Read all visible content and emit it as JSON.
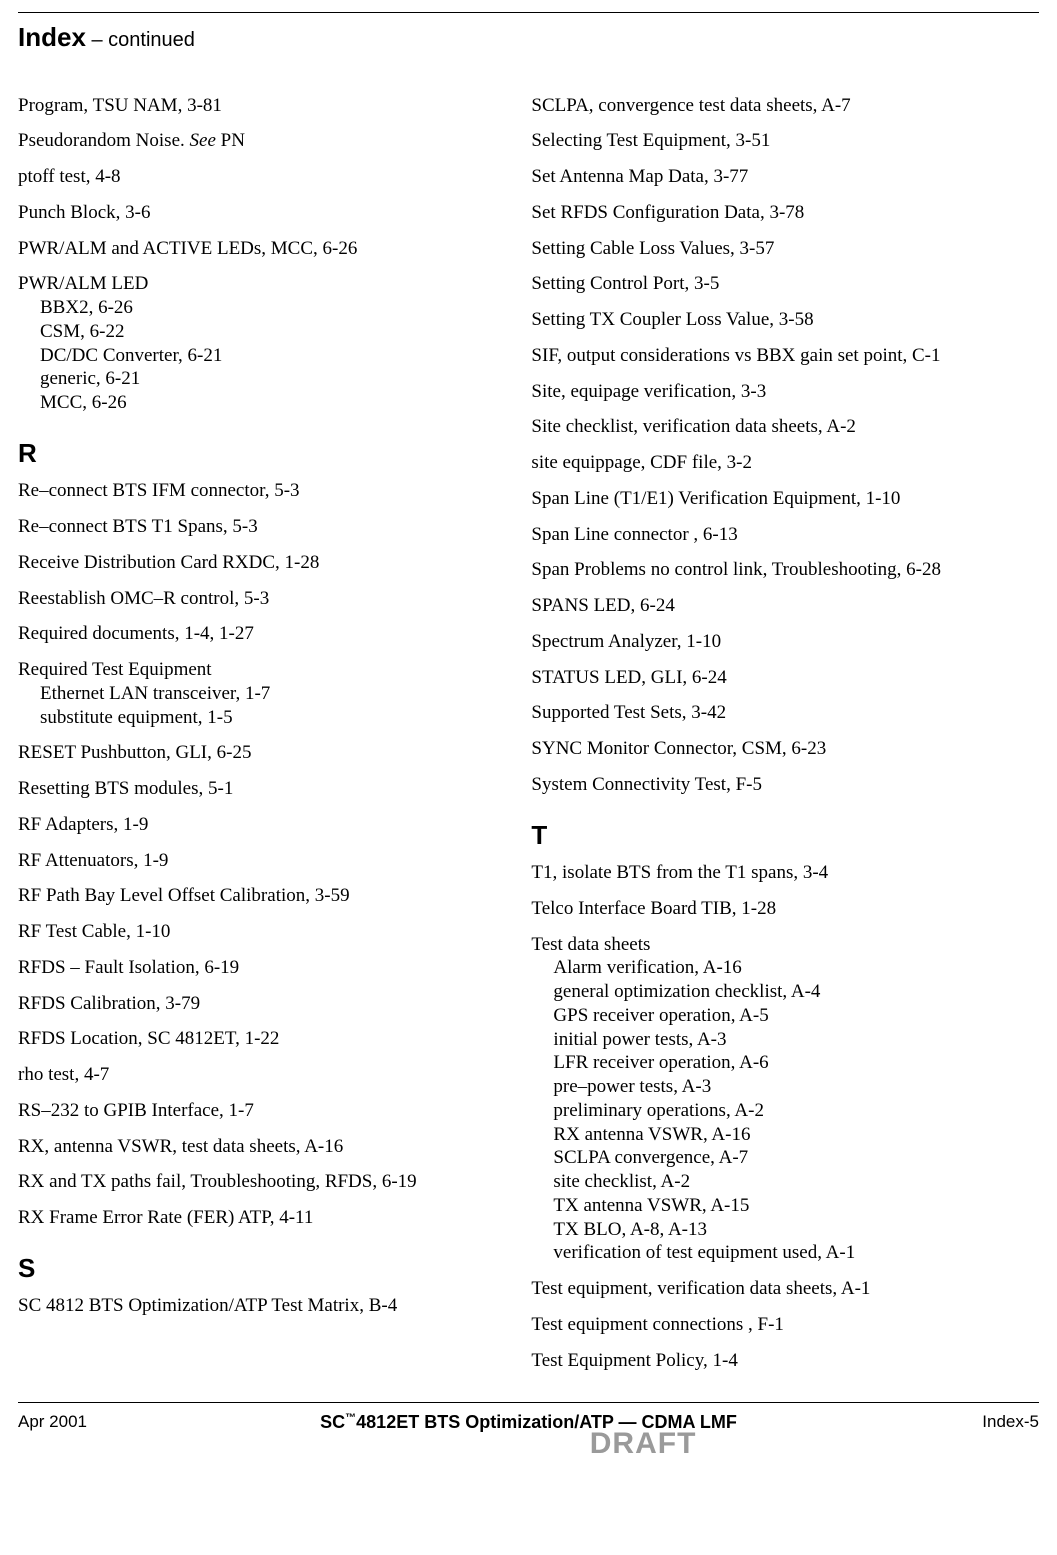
{
  "header": {
    "title": "Index",
    "subtitle": " – continued"
  },
  "left": {
    "entries_top": [
      {
        "main": "Program, TSU NAM, 3-81"
      },
      {
        "main_html": "Pseudorandom Noise. <span class=\"ital\">See</span> PN"
      },
      {
        "main": "ptoff test, 4-8"
      },
      {
        "main": "Punch Block, 3-6"
      },
      {
        "main": "PWR/ALM and ACTIVE LEDs, MCC, 6-26"
      },
      {
        "main": "PWR/ALM LED",
        "subs": [
          "BBX2, 6-26",
          "CSM, 6-22",
          "DC/DC Converter, 6-21",
          "generic, 6-21",
          "MCC, 6-26"
        ]
      }
    ],
    "section_R": "R",
    "entries_R": [
      {
        "main": "Re–connect BTS IFM connector, 5-3"
      },
      {
        "main": "Re–connect BTS T1 Spans, 5-3"
      },
      {
        "main": "Receive Distribution Card RXDC, 1-28"
      },
      {
        "main": "Reestablish OMC–R control, 5-3"
      },
      {
        "main": "Required documents, 1-4, 1-27"
      },
      {
        "main": "Required Test Equipment",
        "subs": [
          "Ethernet LAN transceiver, 1-7",
          "substitute equipment, 1-5"
        ]
      },
      {
        "main": "RESET Pushbutton, GLI, 6-25"
      },
      {
        "main": "Resetting BTS modules, 5-1"
      },
      {
        "main": "RF Adapters, 1-9"
      },
      {
        "main": "RF Attenuators, 1-9"
      },
      {
        "main": "RF Path Bay Level Offset Calibration, 3-59"
      },
      {
        "main": "RF Test Cable, 1-10"
      },
      {
        "main": "RFDS – Fault Isolation, 6-19"
      },
      {
        "main": "RFDS Calibration, 3-79"
      },
      {
        "main": "RFDS Location, SC 4812ET, 1-22"
      },
      {
        "main": "rho test, 4-7"
      },
      {
        "main": "RS–232 to GPIB Interface, 1-7"
      },
      {
        "main": "RX, antenna VSWR, test data sheets, A-16"
      },
      {
        "main": "RX and TX paths fail, Troubleshooting, RFDS, 6-19"
      },
      {
        "main": "RX Frame Error Rate (FER) ATP, 4-11"
      }
    ],
    "section_S": "S",
    "entries_S": [
      {
        "main": "SC 4812 BTS Optimization/ATP Test Matrix, B-4"
      }
    ]
  },
  "right": {
    "entries_top": [
      {
        "main": "SCLPA, convergence test data sheets, A-7"
      },
      {
        "main": "Selecting Test Equipment, 3-51"
      },
      {
        "main": "Set Antenna Map Data, 3-77"
      },
      {
        "main": "Set RFDS Configuration Data, 3-78"
      },
      {
        "main": "Setting Cable Loss Values, 3-57"
      },
      {
        "main": "Setting Control Port, 3-5"
      },
      {
        "main": "Setting TX Coupler Loss Value, 3-58"
      },
      {
        "main": "SIF, output considerations vs BBX gain set point, C-1"
      },
      {
        "main": "Site, equipage verification, 3-3"
      },
      {
        "main": "Site checklist, verification data sheets, A-2"
      },
      {
        "main": "site equippage, CDF file, 3-2"
      },
      {
        "main": "Span Line (T1/E1) Verification Equipment, 1-10"
      },
      {
        "main": "Span Line connector , 6-13"
      },
      {
        "main": "Span Problems no control link, Troubleshooting, 6-28"
      },
      {
        "main": "SPANS LED, 6-24"
      },
      {
        "main": "Spectrum Analyzer, 1-10"
      },
      {
        "main": "STATUS LED, GLI, 6-24"
      },
      {
        "main": "Supported Test Sets, 3-42"
      },
      {
        "main": "SYNC Monitor Connector, CSM, 6-23"
      },
      {
        "main": "System Connectivity Test, F-5"
      }
    ],
    "section_T": "T",
    "entries_T": [
      {
        "main": "T1, isolate BTS from the T1 spans, 3-4"
      },
      {
        "main": "Telco Interface Board TIB, 1-28"
      },
      {
        "main": "Test data sheets",
        "subs": [
          "Alarm verification, A-16",
          "general optimization checklist, A-4",
          "GPS receiver operation, A-5",
          "initial power tests, A-3",
          "LFR receiver operation, A-6",
          "pre–power tests, A-3",
          "preliminary operations, A-2",
          "RX antenna VSWR, A-16",
          "SCLPA convergence, A-7",
          "site checklist, A-2",
          "TX antenna VSWR, A-15",
          "TX BLO, A-8, A-13",
          "verification of test equipment used, A-1"
        ]
      },
      {
        "main": "Test equipment, verification data sheets, A-1"
      },
      {
        "main": "Test equipment connections , F-1"
      },
      {
        "main": "Test Equipment Policy, 1-4"
      }
    ]
  },
  "footer": {
    "left": "Apr 2001",
    "center_prefix": "SC",
    "center_tm": "™",
    "center_suffix": "4812ET BTS Optimization/ATP — CDMA LMF",
    "right": "Index-5",
    "draft": "DRAFT"
  }
}
